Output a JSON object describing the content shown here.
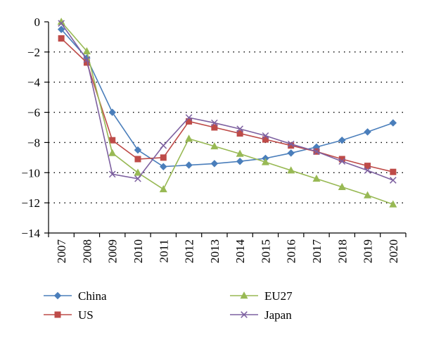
{
  "chart_data": {
    "type": "line",
    "title": "",
    "xlabel": "",
    "ylabel": "",
    "categories": [
      "2007",
      "2008",
      "2009",
      "2010",
      "2011",
      "2012",
      "2013",
      "2014",
      "2015",
      "2016",
      "2017",
      "2018",
      "2019",
      "2020"
    ],
    "ylim": [
      -14,
      0
    ],
    "yticks": [
      0,
      -2,
      -4,
      -6,
      -8,
      -10,
      -12,
      -14
    ],
    "ytick_labels": [
      "0",
      "−2",
      "−4",
      "−6",
      "−8",
      "−10",
      "−12",
      "−14"
    ],
    "grid": "horizontal dotted",
    "legend_position": "bottom",
    "series": [
      {
        "name": "China",
        "color": "#4a7ebb",
        "marker": "diamond",
        "values": [
          -0.5,
          -2.4,
          -6.0,
          -8.5,
          -9.6,
          -9.5,
          -9.4,
          -9.25,
          -9.05,
          -8.7,
          -8.3,
          -7.85,
          -7.3,
          -6.7
        ]
      },
      {
        "name": "US",
        "color": "#be4b48",
        "marker": "square",
        "values": [
          -1.1,
          -2.7,
          -7.85,
          -9.1,
          -9.0,
          -6.6,
          -7.0,
          -7.4,
          -7.8,
          -8.2,
          -8.6,
          -9.1,
          -9.55,
          -9.95
        ]
      },
      {
        "name": "EU27",
        "color": "#98b954",
        "marker": "triangle",
        "values": [
          0,
          -1.95,
          -8.7,
          -10.0,
          -11.1,
          -7.75,
          -8.25,
          -8.75,
          -9.3,
          -9.85,
          -10.4,
          -10.95,
          -11.5,
          -12.1
        ]
      },
      {
        "name": "Japan",
        "color": "#7d60a0",
        "marker": "x",
        "values": [
          -0.1,
          -2.5,
          -10.1,
          -10.4,
          -8.2,
          -6.35,
          -6.7,
          -7.1,
          -7.55,
          -8.1,
          -8.6,
          -9.25,
          -9.85,
          -10.5
        ]
      }
    ]
  }
}
